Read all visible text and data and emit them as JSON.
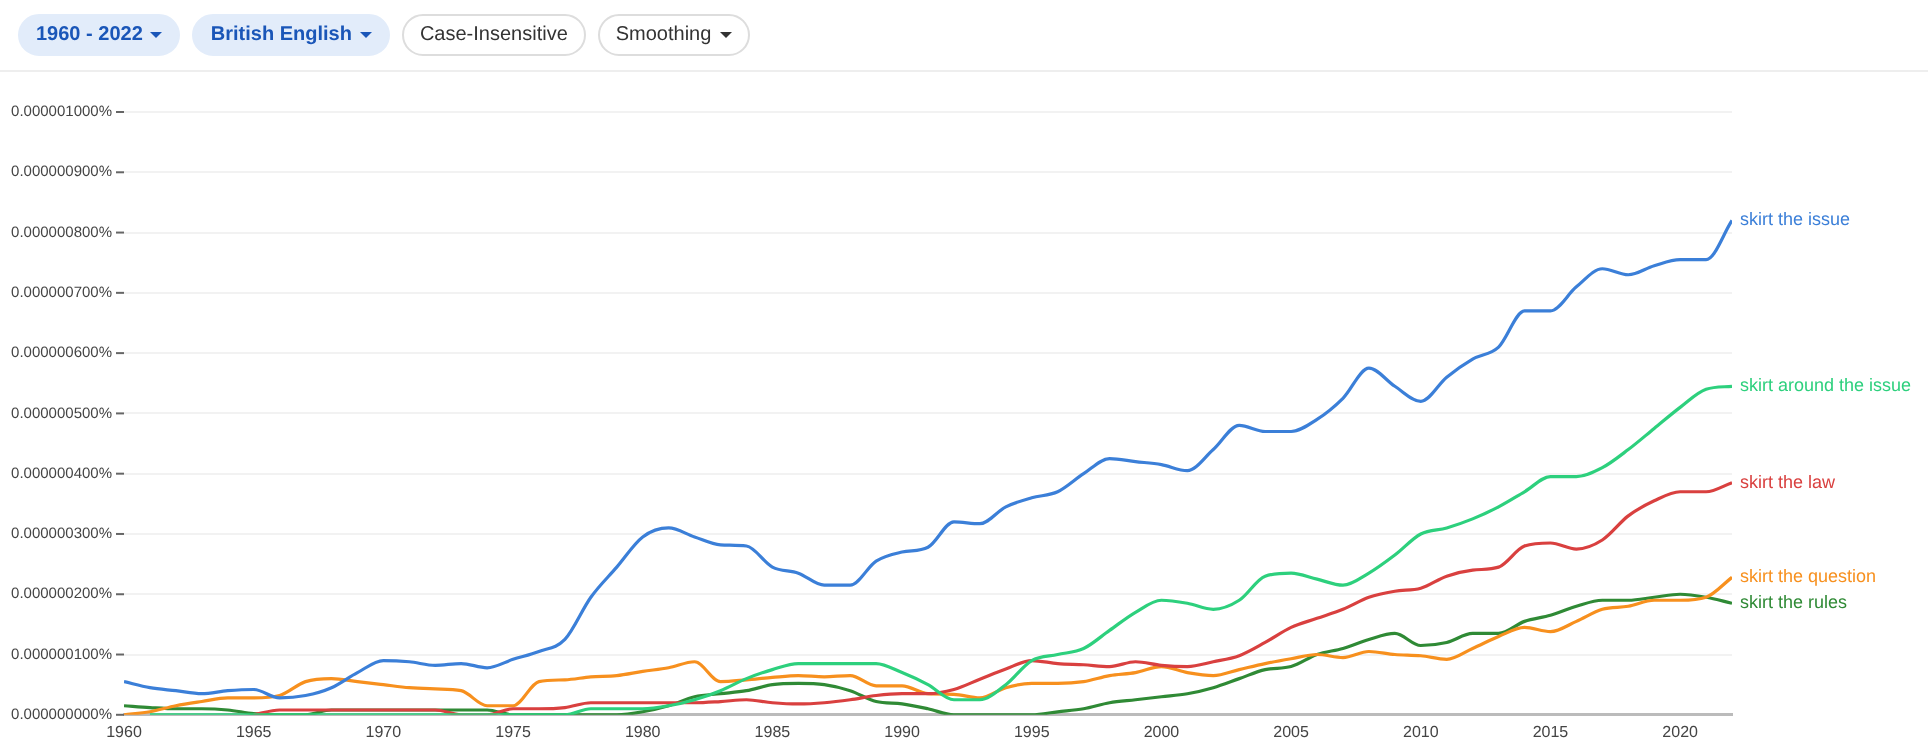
{
  "chart_data": {
    "type": "line",
    "annotations": [
      "1960 - 2022",
      "British English",
      "Case-Insensitive",
      "Smoothing"
    ],
    "x": [
      1960,
      1961,
      1962,
      1963,
      1964,
      1965,
      1966,
      1967,
      1968,
      1969,
      1970,
      1971,
      1972,
      1973,
      1974,
      1975,
      1976,
      1977,
      1978,
      1979,
      1980,
      1981,
      1982,
      1983,
      1984,
      1985,
      1986,
      1987,
      1988,
      1989,
      1990,
      1991,
      1992,
      1993,
      1994,
      1995,
      1996,
      1997,
      1998,
      1999,
      2000,
      2001,
      2002,
      2003,
      2004,
      2005,
      2006,
      2007,
      2008,
      2009,
      2010,
      2011,
      2012,
      2013,
      2014,
      2015,
      2016,
      2017,
      2018,
      2019,
      2020,
      2021,
      2022
    ],
    "series": [
      {
        "name": "skirt the issue",
        "color": "#3b7fd8",
        "values": [
          5.5e-08,
          4.5e-08,
          4e-08,
          3.5e-08,
          4e-08,
          4.2e-08,
          2.8e-08,
          3.2e-08,
          4.5e-08,
          7e-08,
          9e-08,
          8.8e-08,
          8.2e-08,
          8.5e-08,
          7.8e-08,
          9.2e-08,
          1.05e-07,
          1.25e-07,
          1.95e-07,
          2.45e-07,
          2.95e-07,
          3.1e-07,
          2.95e-07,
          2.82e-07,
          2.8e-07,
          2.45e-07,
          2.35e-07,
          2.15e-07,
          2.15e-07,
          2.55e-07,
          2.7e-07,
          2.78e-07,
          3.2e-07,
          3.17e-07,
          3.45e-07,
          3.6e-07,
          3.7e-07,
          4e-07,
          4.25e-07,
          4.2e-07,
          4.15e-07,
          4.05e-07,
          4.4e-07,
          4.8e-07,
          4.7e-07,
          4.7e-07,
          4.9e-07,
          5.25e-07,
          5.75e-07,
          5.45e-07,
          5.2e-07,
          5.6e-07,
          5.9e-07,
          6.1e-07,
          6.7e-07,
          6.7e-07,
          7.1e-07,
          7.4e-07,
          7.3e-07,
          7.45e-07,
          7.55e-07,
          7.55e-07,
          8.2e-07
        ]
      },
      {
        "name": "skirt around the issue",
        "color": "#2dd07d",
        "values": [
          null,
          0,
          0,
          0,
          0,
          0,
          0,
          0,
          0,
          0,
          0,
          0,
          0,
          0,
          0,
          0,
          0,
          0,
          1e-08,
          1e-08,
          1e-08,
          1.5e-08,
          2.5e-08,
          4e-08,
          6e-08,
          7.5e-08,
          8.5e-08,
          8.5e-08,
          8.5e-08,
          8.5e-08,
          7e-08,
          5e-08,
          2.5e-08,
          2.5e-08,
          5e-08,
          9e-08,
          1e-07,
          1.1e-07,
          1.4e-07,
          1.7e-07,
          1.9e-07,
          1.85e-07,
          1.75e-07,
          1.9e-07,
          2.3e-07,
          2.35e-07,
          2.25e-07,
          2.15e-07,
          2.35e-07,
          2.65e-07,
          3e-07,
          3.1e-07,
          3.25e-07,
          3.45e-07,
          3.7e-07,
          3.95e-07,
          3.95e-07,
          4.1e-07,
          4.4e-07,
          4.75e-07,
          5.1e-07,
          5.4e-07,
          5.45e-07
        ]
      },
      {
        "name": "skirt the law",
        "color": "#d9403f",
        "values": [
          null,
          null,
          null,
          null,
          null,
          0,
          8e-09,
          8e-09,
          8e-09,
          8e-09,
          8e-09,
          8e-09,
          8e-09,
          0,
          0,
          1e-08,
          1e-08,
          1.2e-08,
          2e-08,
          2e-08,
          2e-08,
          2e-08,
          2e-08,
          2.2e-08,
          2.5e-08,
          2e-08,
          1.8e-08,
          2e-08,
          2.5e-08,
          3.2e-08,
          3.5e-08,
          3.5e-08,
          4.2e-08,
          5.9e-08,
          7.6e-08,
          9e-08,
          8.5e-08,
          8.3e-08,
          8e-08,
          8.8e-08,
          8.2e-08,
          8e-08,
          8.8e-08,
          9.8e-08,
          1.2e-07,
          1.45e-07,
          1.6e-07,
          1.75e-07,
          1.95e-07,
          2.05e-07,
          2.1e-07,
          2.3e-07,
          2.4e-07,
          2.45e-07,
          2.8e-07,
          2.85e-07,
          2.75e-07,
          2.9e-07,
          3.3e-07,
          3.55e-07,
          3.7e-07,
          3.7e-07,
          3.85e-07
        ]
      },
      {
        "name": "skirt the question",
        "color": "#f7901e",
        "values": [
          0,
          5e-09,
          1.5e-08,
          2.2e-08,
          2.8e-08,
          2.8e-08,
          3.2e-08,
          5.5e-08,
          6e-08,
          5.5e-08,
          5e-08,
          4.5e-08,
          4.3e-08,
          4e-08,
          1.5e-08,
          1.5e-08,
          5.5e-08,
          5.8e-08,
          6.3e-08,
          6.5e-08,
          7.2e-08,
          7.8e-08,
          8.8e-08,
          5.5e-08,
          5.8e-08,
          6.2e-08,
          6.5e-08,
          6.3e-08,
          6.5e-08,
          4.8e-08,
          4.8e-08,
          3.5e-08,
          3.4e-08,
          2.8e-08,
          4.5e-08,
          5.2e-08,
          5.2e-08,
          5.5e-08,
          6.5e-08,
          7e-08,
          8e-08,
          7e-08,
          6.5e-08,
          7.5e-08,
          8.5e-08,
          9.3e-08,
          1e-07,
          9.5e-08,
          1.05e-07,
          1e-07,
          9.8e-08,
          9.2e-08,
          1.1e-07,
          1.3e-07,
          1.45e-07,
          1.38e-07,
          1.55e-07,
          1.75e-07,
          1.8e-07,
          1.9e-07,
          1.9e-07,
          1.95e-07,
          2.28e-07
        ]
      },
      {
        "name": "skirt the rules",
        "color": "#2f8a35",
        "values": [
          1.5e-08,
          1.2e-08,
          1e-08,
          1e-08,
          8e-09,
          2e-09,
          0,
          0,
          8e-09,
          8e-09,
          8e-09,
          8e-09,
          8e-09,
          8e-09,
          8e-09,
          0,
          0,
          0,
          0,
          0,
          5e-09,
          1.5e-08,
          3e-08,
          3.5e-08,
          4e-08,
          5e-08,
          5.2e-08,
          5e-08,
          4e-08,
          2.2e-08,
          1.8e-08,
          1e-08,
          0,
          0,
          0,
          0,
          5e-09,
          1e-08,
          2e-08,
          2.5e-08,
          3e-08,
          3.5e-08,
          4.5e-08,
          6e-08,
          7.5e-08,
          8e-08,
          1e-07,
          1.1e-07,
          1.25e-07,
          1.35e-07,
          1.15e-07,
          1.2e-07,
          1.35e-07,
          1.35e-07,
          1.55e-07,
          1.65e-07,
          1.8e-07,
          1.9e-07,
          1.9e-07,
          1.95e-07,
          2e-07,
          1.95e-07,
          1.85e-07
        ]
      }
    ],
    "xlim": [
      1960,
      2022
    ],
    "xticks": [
      1960,
      1965,
      1970,
      1975,
      1980,
      1985,
      1990,
      1995,
      2000,
      2005,
      2010,
      2015,
      2020
    ],
    "ylim": [
      0,
      1e-06
    ],
    "yticks": [
      {
        "value": 0,
        "label": "0.000000000%"
      },
      {
        "value": 1e-07,
        "label": "0.000000100%"
      },
      {
        "value": 2e-07,
        "label": "0.000000200%"
      },
      {
        "value": 3e-07,
        "label": "0.000000300%"
      },
      {
        "value": 4e-07,
        "label": "0.000000400%"
      },
      {
        "value": 5e-07,
        "label": "0.000000500%"
      },
      {
        "value": 6e-07,
        "label": "0.000000600%"
      },
      {
        "value": 7e-07,
        "label": "0.000000700%"
      },
      {
        "value": 8e-07,
        "label": "0.000000800%"
      },
      {
        "value": 9e-07,
        "label": "0.000000900%"
      },
      {
        "value": 1e-06,
        "label": "0.000001000%"
      }
    ],
    "grid": "y",
    "legend": false,
    "marker": "none",
    "line_style": "solid"
  }
}
